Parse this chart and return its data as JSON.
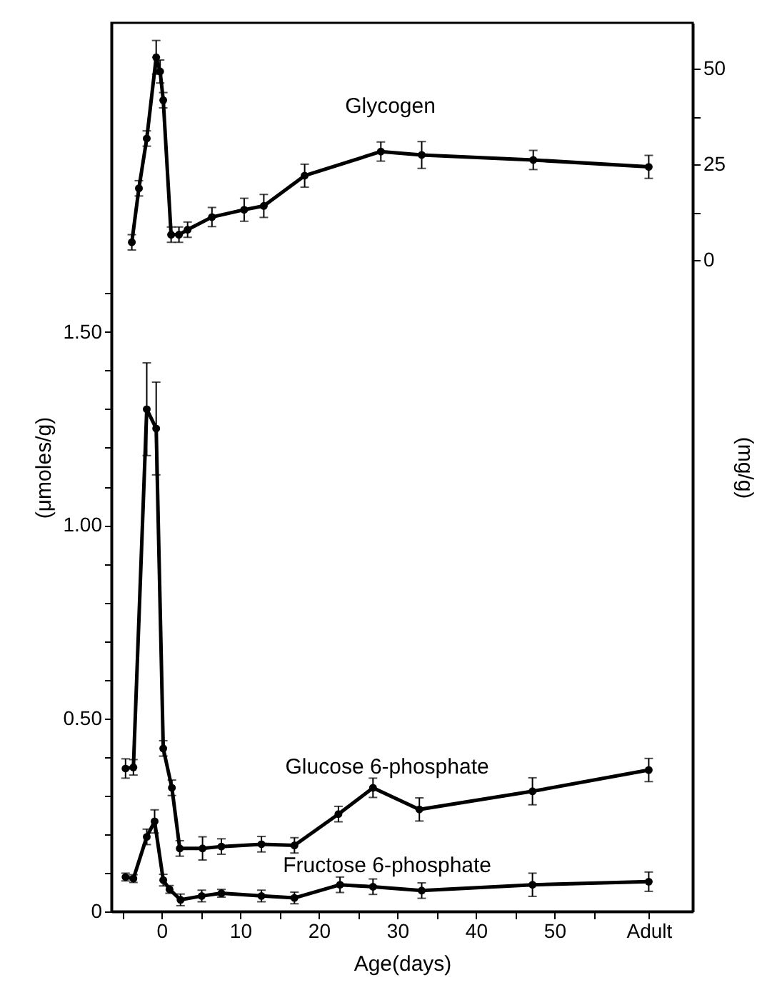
{
  "chart_data": {
    "type": "line",
    "xlabel": "Age(days)",
    "ylabel": "(μmoles/g)",
    "y2label": "(mg/g)",
    "xlim": [
      -6.4,
      67.6
    ],
    "xticks": [
      {
        "value": -5,
        "label": null
      },
      0,
      {
        "value": 5,
        "label": null
      },
      10,
      {
        "value": 15,
        "label": null
      },
      20,
      {
        "value": 25,
        "label": null
      },
      30,
      {
        "value": 35,
        "label": null
      },
      40,
      {
        "value": 45,
        "label": null
      },
      50,
      {
        "value": 55,
        "label": null
      },
      {
        "value": 62,
        "label": "Adult"
      }
    ],
    "ylim": [
      0,
      2.3
    ],
    "yticks": [
      0,
      {
        "value": 0.1,
        "label": null
      },
      {
        "value": 0.2,
        "label": null
      },
      {
        "value": 0.3,
        "label": null
      },
      {
        "value": 0.4,
        "label": null
      },
      {
        "value": 0.5,
        "label": "0.50"
      },
      {
        "value": 0.6,
        "label": null
      },
      {
        "value": 0.7,
        "label": null
      },
      {
        "value": 0.8,
        "label": null
      },
      {
        "value": 0.9,
        "label": null
      },
      {
        "value": 1.0,
        "label": "1.00"
      },
      {
        "value": 1.1,
        "label": null
      },
      {
        "value": 1.2,
        "label": null
      },
      {
        "value": 1.3,
        "label": null
      },
      {
        "value": 1.4,
        "label": null
      },
      {
        "value": 1.5,
        "label": "1.50"
      },
      {
        "value": 1.6,
        "label": null
      }
    ],
    "y2lim": [
      -170,
      62
    ],
    "y2ticks": [
      0,
      {
        "value": 12.5,
        "label": null
      },
      25,
      {
        "value": 37.5,
        "label": null
      },
      50
    ],
    "grid": false,
    "marker": "circle",
    "line_style": "solid",
    "series": [
      {
        "name": "Glycogen",
        "color": "#000000",
        "axis": "y2",
        "x": [
          -3.8,
          -2.9,
          -1.9,
          -0.7,
          -0.2,
          0.2,
          1.2,
          2.2,
          3.3,
          6.4,
          10.5,
          13.0,
          18.2,
          27.9,
          33.1,
          47.3,
          62
        ],
        "values": [
          4.7,
          18.8,
          31.8,
          53,
          49.3,
          41.8,
          6.7,
          6.7,
          8.0,
          11.3,
          13.2,
          14.2,
          22.1,
          28.4,
          27.5,
          26.2,
          24.4
        ],
        "errors": [
          2,
          2,
          2,
          4.4,
          3,
          2,
          2,
          2,
          2,
          2.5,
          3,
          3,
          3,
          2.5,
          3.5,
          2.5,
          3
        ]
      },
      {
        "name": "Glucose 6-phosphate",
        "color": "#000000",
        "x": [
          -4.6,
          -3.6,
          -1.9,
          -0.7,
          0.2,
          1.3,
          2.3,
          5.2,
          7.6,
          12.7,
          16.9,
          22.5,
          26.9,
          32.8,
          47.2,
          62
        ],
        "values": [
          0.37,
          0.373,
          1.3,
          1.25,
          0.422,
          0.32,
          0.163,
          0.163,
          0.168,
          0.174,
          0.171,
          0.252,
          0.32,
          0.264,
          0.311,
          0.366
        ],
        "errors": [
          0.025,
          0.02,
          0.12,
          0.12,
          0.02,
          0.02,
          0.02,
          0.03,
          0.02,
          0.02,
          0.02,
          0.02,
          0.025,
          0.03,
          0.035,
          0.03
        ]
      },
      {
        "name": "Fructose 6-phosphate",
        "color": "#000000",
        "x": [
          -4.6,
          -3.6,
          -1.9,
          -0.9,
          0.2,
          1.0,
          2.4,
          5.1,
          7.6,
          12.7,
          16.9,
          22.7,
          26.9,
          33.1,
          47.2,
          62
        ],
        "values": [
          0.089,
          0.085,
          0.193,
          0.233,
          0.081,
          0.057,
          0.03,
          0.04,
          0.047,
          0.04,
          0.035,
          0.069,
          0.064,
          0.054,
          0.069,
          0.077
        ],
        "errors": [
          0.01,
          0.01,
          0.02,
          0.03,
          0.015,
          0.01,
          0.015,
          0.015,
          0.01,
          0.015,
          0.015,
          0.02,
          0.02,
          0.02,
          0.03,
          0.025
        ]
      }
    ]
  }
}
